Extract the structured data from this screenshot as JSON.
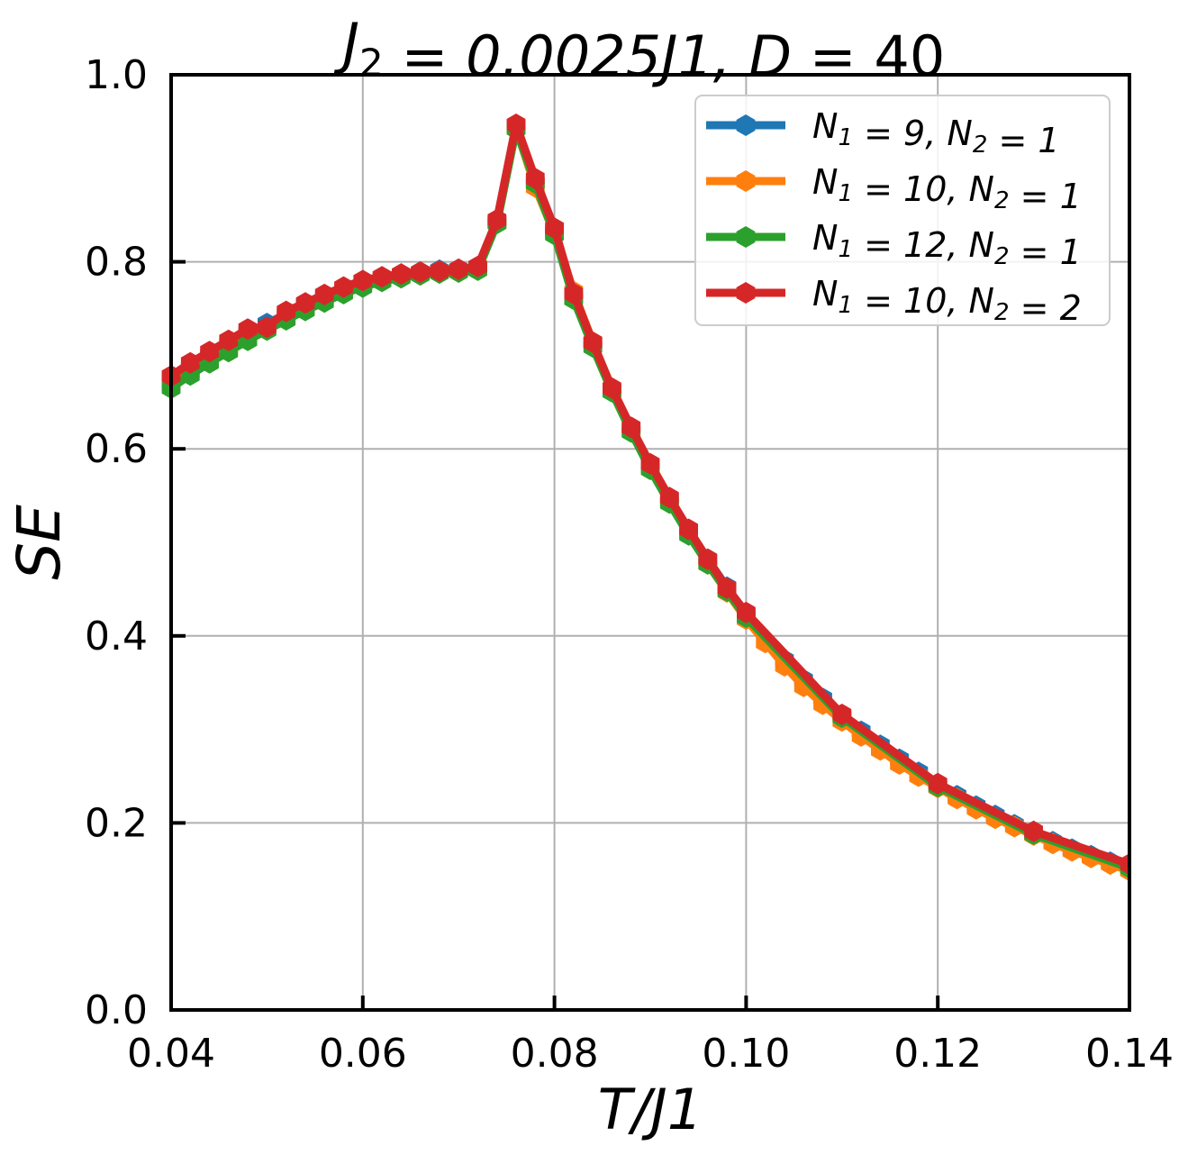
{
  "chart_data": {
    "type": "line",
    "title": "J2 = 0.0025J1, D = 40",
    "xlabel": "T/J1",
    "ylabel": "SE",
    "xlim": [
      0.04,
      0.14
    ],
    "ylim": [
      0.0,
      1.0
    ],
    "xticks": [
      "0.04",
      "0.06",
      "0.08",
      "0.10",
      "0.12",
      "0.14"
    ],
    "yticks": [
      "0.0",
      "0.2",
      "0.4",
      "0.6",
      "0.8",
      "1.0"
    ],
    "grid": true,
    "legend_position": "top-right",
    "series": [
      {
        "name": "N1 = 9, N2 = 1",
        "color": "#1f77b4",
        "x": [
          0.04,
          0.042,
          0.044,
          0.046,
          0.048,
          0.05,
          0.052,
          0.054,
          0.056,
          0.058,
          0.06,
          0.062,
          0.064,
          0.066,
          0.068,
          0.07,
          0.072,
          0.074,
          0.076,
          0.078,
          0.08,
          0.082,
          0.084,
          0.086,
          0.088,
          0.09,
          0.092,
          0.094,
          0.096,
          0.098,
          0.1,
          0.104,
          0.106,
          0.108,
          0.11,
          0.112,
          0.114,
          0.116,
          0.118,
          0.12,
          0.122,
          0.124,
          0.126,
          0.128,
          0.13,
          0.132,
          0.134,
          0.136,
          0.138,
          0.14
        ],
        "y": [
          0.675,
          0.688,
          0.7,
          0.712,
          0.724,
          0.734,
          0.744,
          0.754,
          0.762,
          0.77,
          0.777,
          0.782,
          0.786,
          0.789,
          0.791,
          0.792,
          0.794,
          0.843,
          0.945,
          0.885,
          0.833,
          0.762,
          0.713,
          0.664,
          0.622,
          0.583,
          0.547,
          0.513,
          0.482,
          0.452,
          0.424,
          0.374,
          0.353,
          0.333,
          0.315,
          0.298,
          0.283,
          0.268,
          0.254,
          0.241,
          0.229,
          0.218,
          0.208,
          0.198,
          0.189,
          0.18,
          0.172,
          0.165,
          0.158,
          0.152
        ]
      },
      {
        "name": "N1 = 10, N2 = 1",
        "color": "#ff7f0e",
        "x": [
          0.04,
          0.042,
          0.044,
          0.046,
          0.048,
          0.05,
          0.052,
          0.054,
          0.056,
          0.058,
          0.06,
          0.062,
          0.064,
          0.066,
          0.068,
          0.07,
          0.072,
          0.074,
          0.076,
          0.078,
          0.08,
          0.082,
          0.084,
          0.086,
          0.088,
          0.09,
          0.092,
          0.094,
          0.096,
          0.098,
          0.1,
          0.102,
          0.104,
          0.106,
          0.108,
          0.11,
          0.112,
          0.114,
          0.116,
          0.118,
          0.12,
          0.122,
          0.124,
          0.126,
          0.128,
          0.13,
          0.132,
          0.134,
          0.136,
          0.138,
          0.14
        ],
        "y": [
          0.668,
          0.682,
          0.694,
          0.706,
          0.718,
          0.729,
          0.74,
          0.75,
          0.759,
          0.767,
          0.775,
          0.781,
          0.785,
          0.788,
          0.79,
          0.791,
          0.793,
          0.842,
          0.943,
          0.88,
          0.83,
          0.768,
          0.714,
          0.662,
          0.619,
          0.58,
          0.543,
          0.509,
          0.477,
          0.447,
          0.418,
          0.393,
          0.368,
          0.346,
          0.327,
          0.309,
          0.293,
          0.278,
          0.263,
          0.25,
          0.238,
          0.226,
          0.215,
          0.205,
          0.196,
          0.187,
          0.178,
          0.17,
          0.163,
          0.156,
          0.149
        ]
      },
      {
        "name": "N1 = 12, N2 = 1",
        "color": "#2ca02c",
        "x": [
          0.04,
          0.042,
          0.044,
          0.046,
          0.048,
          0.05,
          0.052,
          0.054,
          0.056,
          0.058,
          0.06,
          0.062,
          0.064,
          0.066,
          0.068,
          0.07,
          0.072,
          0.074,
          0.076,
          0.078,
          0.08,
          0.082,
          0.084,
          0.086,
          0.088,
          0.09,
          0.092,
          0.094,
          0.096,
          0.098,
          0.1,
          0.11,
          0.12,
          0.13,
          0.14
        ],
        "y": [
          0.665,
          0.679,
          0.692,
          0.704,
          0.716,
          0.727,
          0.738,
          0.748,
          0.757,
          0.766,
          0.773,
          0.779,
          0.783,
          0.786,
          0.788,
          0.789,
          0.791,
          0.841,
          0.942,
          0.884,
          0.829,
          0.76,
          0.709,
          0.661,
          0.618,
          0.578,
          0.542,
          0.508,
          0.477,
          0.448,
          0.42,
          0.313,
          0.239,
          0.188,
          0.152
        ]
      },
      {
        "name": "N1 = 10, N2 = 2",
        "color": "#d62728",
        "x": [
          0.04,
          0.042,
          0.044,
          0.046,
          0.048,
          0.05,
          0.052,
          0.054,
          0.056,
          0.058,
          0.06,
          0.062,
          0.064,
          0.066,
          0.068,
          0.07,
          0.072,
          0.074,
          0.076,
          0.078,
          0.08,
          0.082,
          0.084,
          0.086,
          0.088,
          0.09,
          0.092,
          0.094,
          0.096,
          0.098,
          0.1,
          0.11,
          0.12,
          0.13,
          0.14
        ],
        "y": [
          0.678,
          0.692,
          0.704,
          0.716,
          0.728,
          0.73,
          0.747,
          0.756,
          0.765,
          0.773,
          0.78,
          0.784,
          0.787,
          0.789,
          0.79,
          0.792,
          0.795,
          0.845,
          0.947,
          0.889,
          0.836,
          0.766,
          0.714,
          0.665,
          0.623,
          0.584,
          0.548,
          0.514,
          0.482,
          0.451,
          0.425,
          0.316,
          0.242,
          0.191,
          0.156
        ]
      }
    ]
  }
}
